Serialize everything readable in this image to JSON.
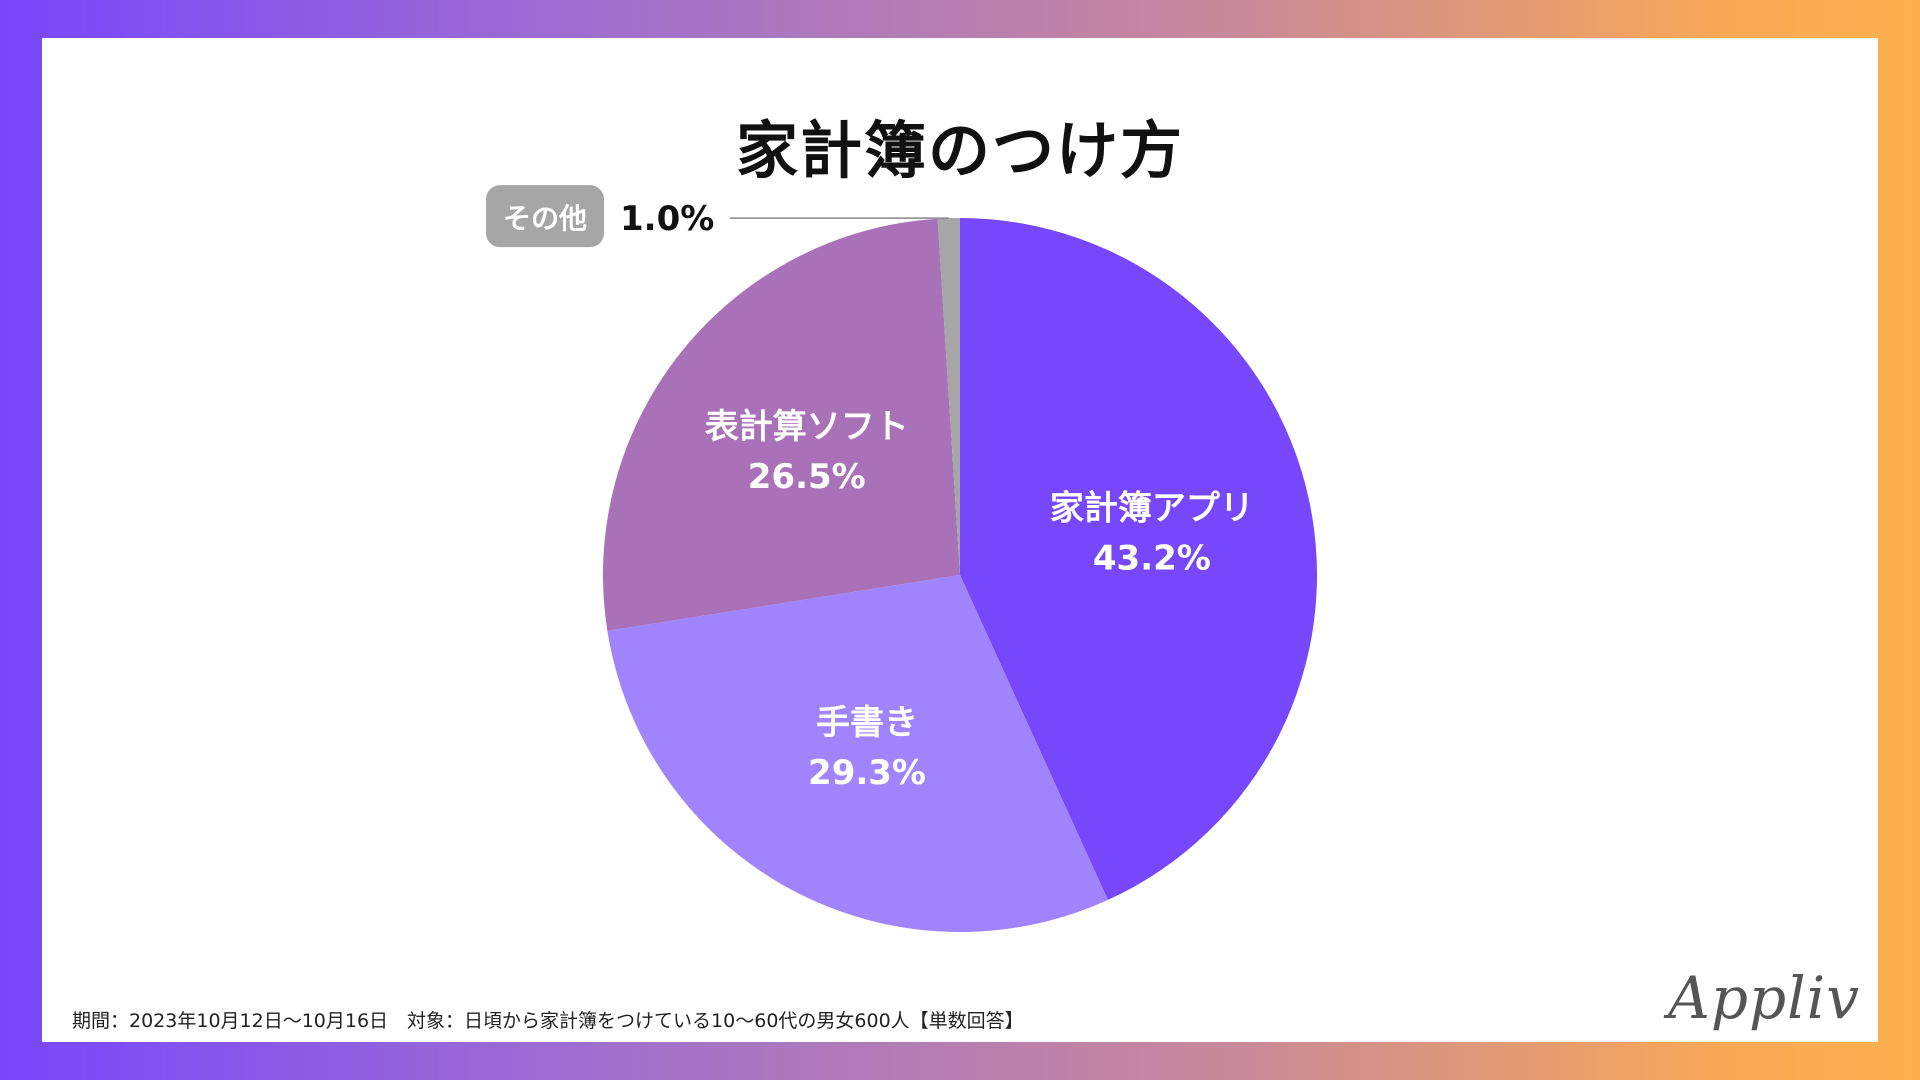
{
  "chart_data": {
    "type": "pie",
    "title": "家計簿のつけ方",
    "start_angle_deg": 0,
    "direction": "clockwise",
    "slices": [
      {
        "label": "家計簿アプリ",
        "value": 43.2,
        "value_label": "43.2%",
        "color": "#7747fb",
        "label_color": "#ffffff"
      },
      {
        "label": "手書き",
        "value": 29.3,
        "value_label": "29.3%",
        "color": "#a084fd",
        "label_color": "#ffffff"
      },
      {
        "label": "表計算ソフト",
        "value": 26.5,
        "value_label": "26.5%",
        "color": "#a971b8",
        "label_color": "#ffffff"
      },
      {
        "label": "その他",
        "value": 1.0,
        "value_label": "1.0%",
        "color": "#a6a6a6",
        "label_color": "#ffffff",
        "callout": true
      }
    ]
  },
  "footnote": "期間：2023年10月12日〜10月16日　対象：日頃から家計簿をつけている10〜60代の男女600人【単数回答】",
  "logo_text": "Appliv"
}
